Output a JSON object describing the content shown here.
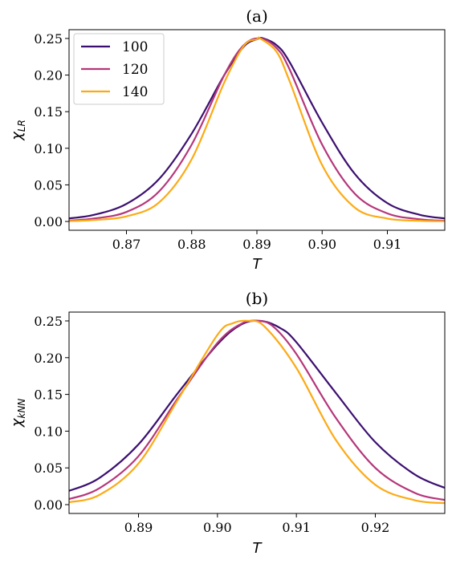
{
  "chart_data": [
    {
      "type": "line",
      "title": "(a)",
      "xlabel": "T",
      "ylabel": {
        "base": "χ",
        "sub": "LR"
      },
      "xlim": [
        0.8612,
        0.9188
      ],
      "ylim": [
        -0.012,
        0.262
      ],
      "xticks": [
        0.87,
        0.88,
        0.89,
        0.9,
        0.91
      ],
      "xtick_labels": [
        "0.87",
        "0.88",
        "0.89",
        "0.90",
        "0.91"
      ],
      "yticks": [
        0.0,
        0.05,
        0.1,
        0.15,
        0.2,
        0.25
      ],
      "ytick_labels": [
        "0.00",
        "0.05",
        "0.10",
        "0.15",
        "0.20",
        "0.25"
      ],
      "legend": {
        "location": "upper-left"
      },
      "series": [
        {
          "name": "100",
          "color": "#3b0f70",
          "x": [
            0.861,
            0.865,
            0.87,
            0.875,
            0.88,
            0.885,
            0.888,
            0.89,
            0.891,
            0.893,
            0.895,
            0.9,
            0.905,
            0.91,
            0.915,
            0.919
          ],
          "y": [
            0.004,
            0.009,
            0.024,
            0.058,
            0.12,
            0.2,
            0.239,
            0.249,
            0.25,
            0.241,
            0.218,
            0.135,
            0.065,
            0.025,
            0.009,
            0.004
          ]
        },
        {
          "name": "120",
          "color": "#b5367a",
          "x": [
            0.861,
            0.865,
            0.87,
            0.875,
            0.88,
            0.885,
            0.888,
            0.8905,
            0.893,
            0.895,
            0.9,
            0.905,
            0.91,
            0.915,
            0.919
          ],
          "y": [
            0.001,
            0.004,
            0.013,
            0.041,
            0.105,
            0.2,
            0.241,
            0.25,
            0.237,
            0.208,
            0.105,
            0.038,
            0.011,
            0.003,
            0.001
          ]
        },
        {
          "name": "140",
          "color": "#fcaa14",
          "x": [
            0.861,
            0.865,
            0.87,
            0.875,
            0.88,
            0.885,
            0.888,
            0.89,
            0.8905,
            0.893,
            0.895,
            0.9,
            0.905,
            0.91,
            0.915,
            0.919
          ],
          "y": [
            0.0005,
            0.002,
            0.007,
            0.026,
            0.085,
            0.19,
            0.24,
            0.249,
            0.25,
            0.232,
            0.192,
            0.077,
            0.019,
            0.004,
            0.001,
            0.0003
          ]
        }
      ]
    },
    {
      "type": "line",
      "title": "(b)",
      "xlabel": "T",
      "ylabel": {
        "base": "χ",
        "sub": "kNN"
      },
      "xlim": [
        0.8812,
        0.9288
      ],
      "ylim": [
        -0.012,
        0.262
      ],
      "xticks": [
        0.89,
        0.9,
        0.91,
        0.92
      ],
      "xtick_labels": [
        "0.89",
        "0.90",
        "0.91",
        "0.92"
      ],
      "yticks": [
        0.0,
        0.05,
        0.1,
        0.15,
        0.2,
        0.25
      ],
      "ytick_labels": [
        "0.00",
        "0.05",
        "0.10",
        "0.15",
        "0.20",
        "0.25"
      ],
      "series": [
        {
          "name": "100",
          "color": "#3b0f70",
          "x": [
            0.881,
            0.885,
            0.89,
            0.895,
            0.9,
            0.903,
            0.9055,
            0.908,
            0.91,
            0.915,
            0.92,
            0.925,
            0.929
          ],
          "y": [
            0.018,
            0.036,
            0.082,
            0.152,
            0.218,
            0.245,
            0.25,
            0.24,
            0.221,
            0.152,
            0.085,
            0.041,
            0.022
          ]
        },
        {
          "name": "120",
          "color": "#b5367a",
          "x": [
            0.881,
            0.885,
            0.89,
            0.895,
            0.9,
            0.903,
            0.905,
            0.907,
            0.91,
            0.915,
            0.92,
            0.925,
            0.929
          ],
          "y": [
            0.007,
            0.022,
            0.066,
            0.145,
            0.22,
            0.246,
            0.25,
            0.243,
            0.205,
            0.118,
            0.05,
            0.016,
            0.006
          ]
        },
        {
          "name": "140",
          "color": "#fcaa14",
          "x": [
            0.881,
            0.885,
            0.89,
            0.895,
            0.9,
            0.902,
            0.904,
            0.906,
            0.91,
            0.915,
            0.92,
            0.925,
            0.929
          ],
          "y": [
            0.003,
            0.013,
            0.056,
            0.143,
            0.231,
            0.247,
            0.25,
            0.242,
            0.186,
            0.088,
            0.027,
            0.006,
            0.002
          ]
        }
      ]
    }
  ]
}
